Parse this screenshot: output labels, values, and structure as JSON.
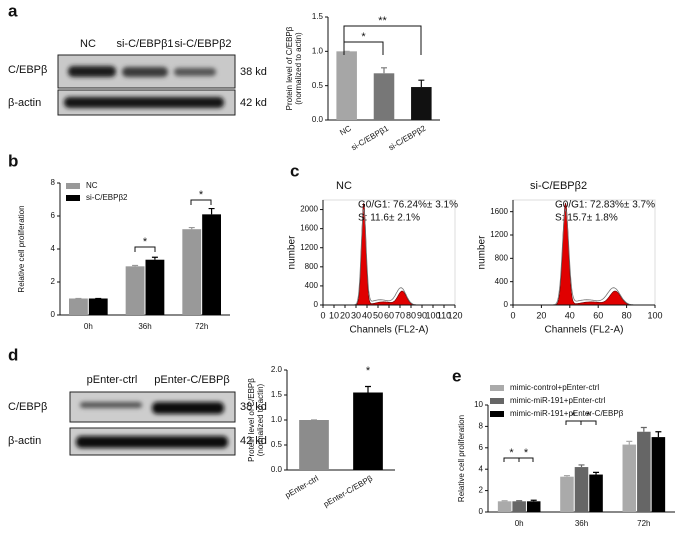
{
  "panel_labels": [
    "a",
    "b",
    "c",
    "d",
    "e"
  ],
  "blots": [
    {
      "columns": [
        "NC",
        "si-C/EBPβ1",
        "si-C/EBPβ2"
      ],
      "rows": [
        "C/EBPβ",
        "β-actin"
      ],
      "sizes": [
        "38 kd",
        "42 kd"
      ]
    },
    {
      "columns": [
        "pEnter-ctrl",
        "pEnter-C/EBPβ"
      ],
      "rows": [
        "C/EBPβ",
        "β-actin"
      ],
      "sizes": [
        "38 kd",
        "42 kd"
      ]
    }
  ],
  "chart_data": [
    {
      "type": "bar",
      "categories": [
        "NC",
        "si-C/EBPβ1",
        "si-C/EBPβ2"
      ],
      "values": [
        1.0,
        0.68,
        0.48
      ],
      "errors": [
        0,
        0.08,
        0.1
      ],
      "colors": [
        "#a6a6a6",
        "#777777",
        "#111111"
      ],
      "ylabel": [
        "Protein level of C/EBPβ",
        "(normalized to actin)"
      ],
      "ylim": [
        0,
        1.5
      ],
      "yticks": [
        {
          "value": 0,
          "label": "0.0"
        },
        0.5,
        {
          "value": 1,
          "label": "1.0"
        },
        1.5
      ],
      "annotations": [
        "*",
        "**"
      ]
    },
    {
      "type": "bar",
      "categories": [
        "0h",
        "36h",
        "72h"
      ],
      "series": [
        {
          "name": "NC",
          "color": "#999999",
          "values": [
            1,
            2.95,
            5.2
          ],
          "errors": [
            0,
            0.05,
            0.1
          ]
        },
        {
          "name": "si-C/EBPβ2",
          "color": "#000000",
          "values": [
            1,
            3.35,
            6.1
          ],
          "errors": [
            0,
            0.15,
            0.35
          ]
        }
      ],
      "ylabel": [
        "Relative cell proliferation"
      ],
      "ylim": [
        0,
        8
      ],
      "yticks": [
        0,
        2,
        4,
        6,
        8
      ],
      "annotations": [
        "*",
        "*"
      ]
    },
    {
      "type": "flow",
      "title": "NC",
      "notes": [
        "G0/G1: 76.24%± 3.1%",
        "S: 11.6± 2.1%"
      ],
      "xlabel": "Channels (FL2-A)",
      "ylabel": "number",
      "xlim": [
        0,
        120
      ],
      "xticks": [
        0,
        10,
        20,
        30,
        40,
        50,
        60,
        70,
        80,
        90,
        100,
        110,
        120
      ],
      "ylim": [
        0,
        2200
      ],
      "yticks": [
        0,
        400,
        800,
        1200,
        1600,
        2000
      ]
    },
    {
      "type": "flow",
      "title": "si-C/EBPβ2",
      "notes": [
        "G0/G1: 72.83%± 3.7%",
        "S: 15.7± 1.8%"
      ],
      "xlabel": "Channels (FL2-A)",
      "ylabel": "number",
      "xlim": [
        0,
        100
      ],
      "xticks": [
        0,
        20,
        40,
        60,
        80,
        100
      ],
      "ylim": [
        0,
        1800
      ],
      "yticks": [
        0,
        400,
        800,
        1200,
        1600
      ]
    },
    {
      "type": "bar",
      "categories": [
        "pEnter-ctrl",
        "pEnter-C/EBPβ"
      ],
      "values": [
        1.0,
        1.55
      ],
      "errors": [
        0,
        0.12
      ],
      "colors": [
        "#8c8c8c",
        "#000000"
      ],
      "ylabel": [
        "Protein level of C/EBPβ",
        "(normalized to actin)"
      ],
      "ylim": [
        0,
        2
      ],
      "yticks": [
        {
          "value": 0,
          "label": "0.0"
        },
        0.5,
        {
          "value": 1,
          "label": "1.0"
        },
        1.5,
        {
          "value": 2,
          "label": "2.0"
        }
      ],
      "annotations": [
        "*"
      ]
    },
    {
      "type": "bar",
      "categories": [
        "0h",
        "36h",
        "72h"
      ],
      "series": [
        {
          "name": "mimic-control+pEnter-ctrl",
          "color": "#aaaaaa",
          "values": [
            1,
            3.3,
            6.3
          ],
          "errors": [
            0.05,
            0.1,
            0.3
          ]
        },
        {
          "name": "mimic-miR-191+pEnter-ctrl",
          "color": "#666666",
          "values": [
            1,
            4.2,
            7.5
          ],
          "errors": [
            0.05,
            0.2,
            0.4
          ]
        },
        {
          "name": "mimic-miR-191+pEnter-C/EBPβ",
          "color": "#000000",
          "values": [
            1,
            3.5,
            7.0
          ],
          "errors": [
            0.1,
            0.2,
            0.5
          ]
        }
      ],
      "ylabel": [
        "Relative cell proliferation"
      ],
      "ylim": [
        0,
        10
      ],
      "yticks": [
        0,
        2,
        4,
        6,
        8,
        10
      ],
      "annotations": [
        "*",
        "*",
        "*",
        "*"
      ]
    }
  ]
}
